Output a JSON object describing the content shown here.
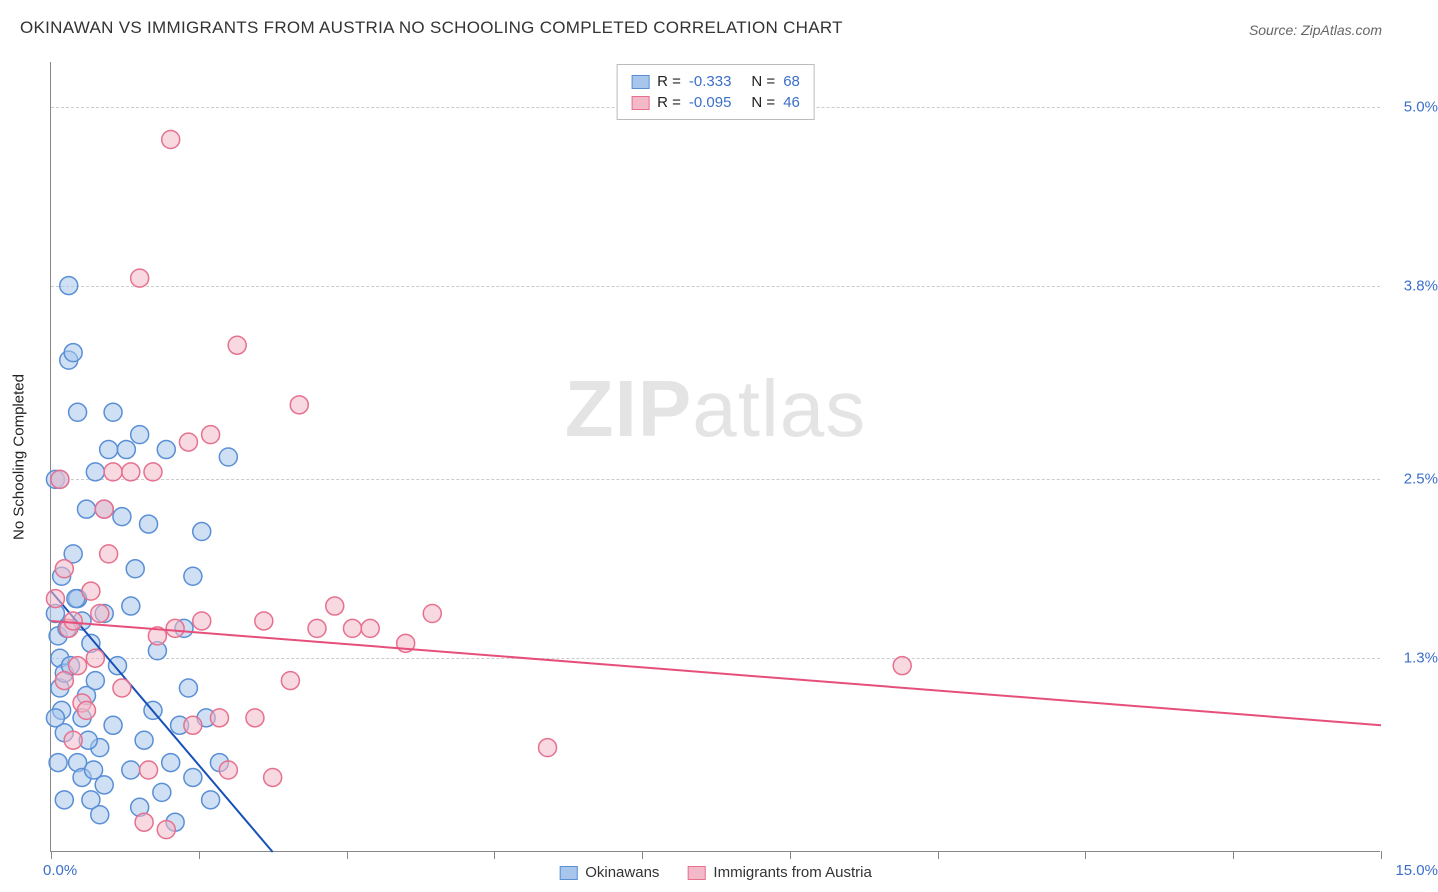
{
  "title": "OKINAWAN VS IMMIGRANTS FROM AUSTRIA NO SCHOOLING COMPLETED CORRELATION CHART",
  "source": "Source: ZipAtlas.com",
  "watermark_zip": "ZIP",
  "watermark_atlas": "atlas",
  "chart": {
    "type": "scatter",
    "xlim": [
      0,
      15
    ],
    "ylim": [
      0,
      5.3
    ],
    "x_ticks": [
      0,
      1.667,
      3.333,
      5.0,
      6.667,
      8.333,
      10.0,
      11.667,
      13.333,
      15.0
    ],
    "y_gridlines": [
      1.3,
      2.5,
      3.8,
      5.0
    ],
    "y_tick_labels": [
      "1.3%",
      "2.5%",
      "3.8%",
      "5.0%"
    ],
    "x_label_min": "0.0%",
    "x_label_max": "15.0%",
    "y_axis_title": "No Schooling Completed",
    "background_color": "#ffffff",
    "grid_color": "#cccccc",
    "axis_color": "#888888",
    "marker_radius": 9,
    "marker_stroke_width": 1.5,
    "line_width": 2
  },
  "series": [
    {
      "name": "Okinawans",
      "fill": "#a8c6eb",
      "stroke": "#5a8fd6",
      "fill_opacity": 0.55,
      "line_color": "#1751b8",
      "r_value": "-0.333",
      "n_value": "68",
      "trend": {
        "x1": 0,
        "y1": 1.75,
        "x2": 2.5,
        "y2": 0
      },
      "points": [
        [
          0.05,
          1.6
        ],
        [
          0.08,
          1.45
        ],
        [
          0.1,
          1.3
        ],
        [
          0.1,
          1.1
        ],
        [
          0.12,
          0.95
        ],
        [
          0.15,
          0.8
        ],
        [
          0.15,
          1.2
        ],
        [
          0.18,
          1.5
        ],
        [
          0.2,
          3.8
        ],
        [
          0.2,
          3.3
        ],
        [
          0.25,
          3.35
        ],
        [
          0.3,
          1.7
        ],
        [
          0.3,
          0.6
        ],
        [
          0.35,
          0.5
        ],
        [
          0.35,
          0.9
        ],
        [
          0.4,
          1.05
        ],
        [
          0.4,
          2.3
        ],
        [
          0.45,
          1.4
        ],
        [
          0.45,
          0.35
        ],
        [
          0.5,
          2.55
        ],
        [
          0.5,
          1.15
        ],
        [
          0.55,
          0.7
        ],
        [
          0.55,
          0.25
        ],
        [
          0.6,
          0.45
        ],
        [
          0.6,
          1.6
        ],
        [
          0.65,
          2.7
        ],
        [
          0.7,
          2.95
        ],
        [
          0.7,
          0.85
        ],
        [
          0.75,
          1.25
        ],
        [
          0.8,
          2.25
        ],
        [
          0.85,
          2.7
        ],
        [
          0.9,
          0.55
        ],
        [
          0.95,
          1.9
        ],
        [
          1.0,
          2.8
        ],
        [
          1.0,
          0.3
        ],
        [
          1.05,
          0.75
        ],
        [
          1.1,
          2.2
        ],
        [
          1.15,
          0.95
        ],
        [
          1.2,
          1.35
        ],
        [
          1.25,
          0.4
        ],
        [
          1.3,
          2.7
        ],
        [
          1.35,
          0.6
        ],
        [
          1.4,
          0.2
        ],
        [
          1.45,
          0.85
        ],
        [
          1.5,
          1.5
        ],
        [
          1.55,
          1.1
        ],
        [
          1.6,
          0.5
        ],
        [
          1.7,
          2.15
        ],
        [
          1.75,
          0.9
        ],
        [
          1.8,
          0.35
        ],
        [
          1.9,
          0.6
        ],
        [
          2.0,
          2.65
        ],
        [
          0.05,
          2.5
        ],
        [
          0.1,
          2.5
        ],
        [
          0.3,
          2.95
        ],
        [
          0.12,
          1.85
        ],
        [
          0.25,
          2.0
        ],
        [
          0.35,
          1.55
        ],
        [
          0.08,
          0.6
        ],
        [
          0.42,
          0.75
        ],
        [
          0.48,
          0.55
        ],
        [
          0.15,
          0.35
        ],
        [
          0.05,
          0.9
        ],
        [
          0.22,
          1.25
        ],
        [
          0.28,
          1.7
        ],
        [
          0.6,
          2.3
        ],
        [
          0.9,
          1.65
        ],
        [
          1.6,
          1.85
        ]
      ]
    },
    {
      "name": "Immigrants from Austria",
      "fill": "#f4b9c9",
      "stroke": "#e6718f",
      "fill_opacity": 0.55,
      "line_color": "#e64f7a",
      "r_value": "-0.095",
      "n_value": "46",
      "trend": {
        "x1": 0,
        "y1": 1.55,
        "x2": 15,
        "y2": 0.85
      },
      "points": [
        [
          0.1,
          2.5
        ],
        [
          0.15,
          1.9
        ],
        [
          0.2,
          1.5
        ],
        [
          0.25,
          1.55
        ],
        [
          0.3,
          1.25
        ],
        [
          0.35,
          1.0
        ],
        [
          0.4,
          0.95
        ],
        [
          0.5,
          1.3
        ],
        [
          0.55,
          1.6
        ],
        [
          0.6,
          2.3
        ],
        [
          0.65,
          2.0
        ],
        [
          0.7,
          2.55
        ],
        [
          0.8,
          1.1
        ],
        [
          0.9,
          2.55
        ],
        [
          1.0,
          3.85
        ],
        [
          1.1,
          0.55
        ],
        [
          1.15,
          2.55
        ],
        [
          1.2,
          1.45
        ],
        [
          1.35,
          4.78
        ],
        [
          1.4,
          1.5
        ],
        [
          1.55,
          2.75
        ],
        [
          1.6,
          0.85
        ],
        [
          1.7,
          1.55
        ],
        [
          1.8,
          2.8
        ],
        [
          1.9,
          0.9
        ],
        [
          2.0,
          0.55
        ],
        [
          2.1,
          3.4
        ],
        [
          2.3,
          0.9
        ],
        [
          2.4,
          1.55
        ],
        [
          2.5,
          0.5
        ],
        [
          2.7,
          1.15
        ],
        [
          2.8,
          3.0
        ],
        [
          3.0,
          1.5
        ],
        [
          3.2,
          1.65
        ],
        [
          3.4,
          1.5
        ],
        [
          3.6,
          1.5
        ],
        [
          4.0,
          1.4
        ],
        [
          4.3,
          1.6
        ],
        [
          5.6,
          0.7
        ],
        [
          9.6,
          1.25
        ],
        [
          0.05,
          1.7
        ],
        [
          0.15,
          1.15
        ],
        [
          0.45,
          1.75
        ],
        [
          1.05,
          0.2
        ],
        [
          1.3,
          0.15
        ],
        [
          0.25,
          0.75
        ]
      ]
    }
  ],
  "stats_legend": {
    "r_label": "R  =",
    "n_label": "N  ="
  }
}
